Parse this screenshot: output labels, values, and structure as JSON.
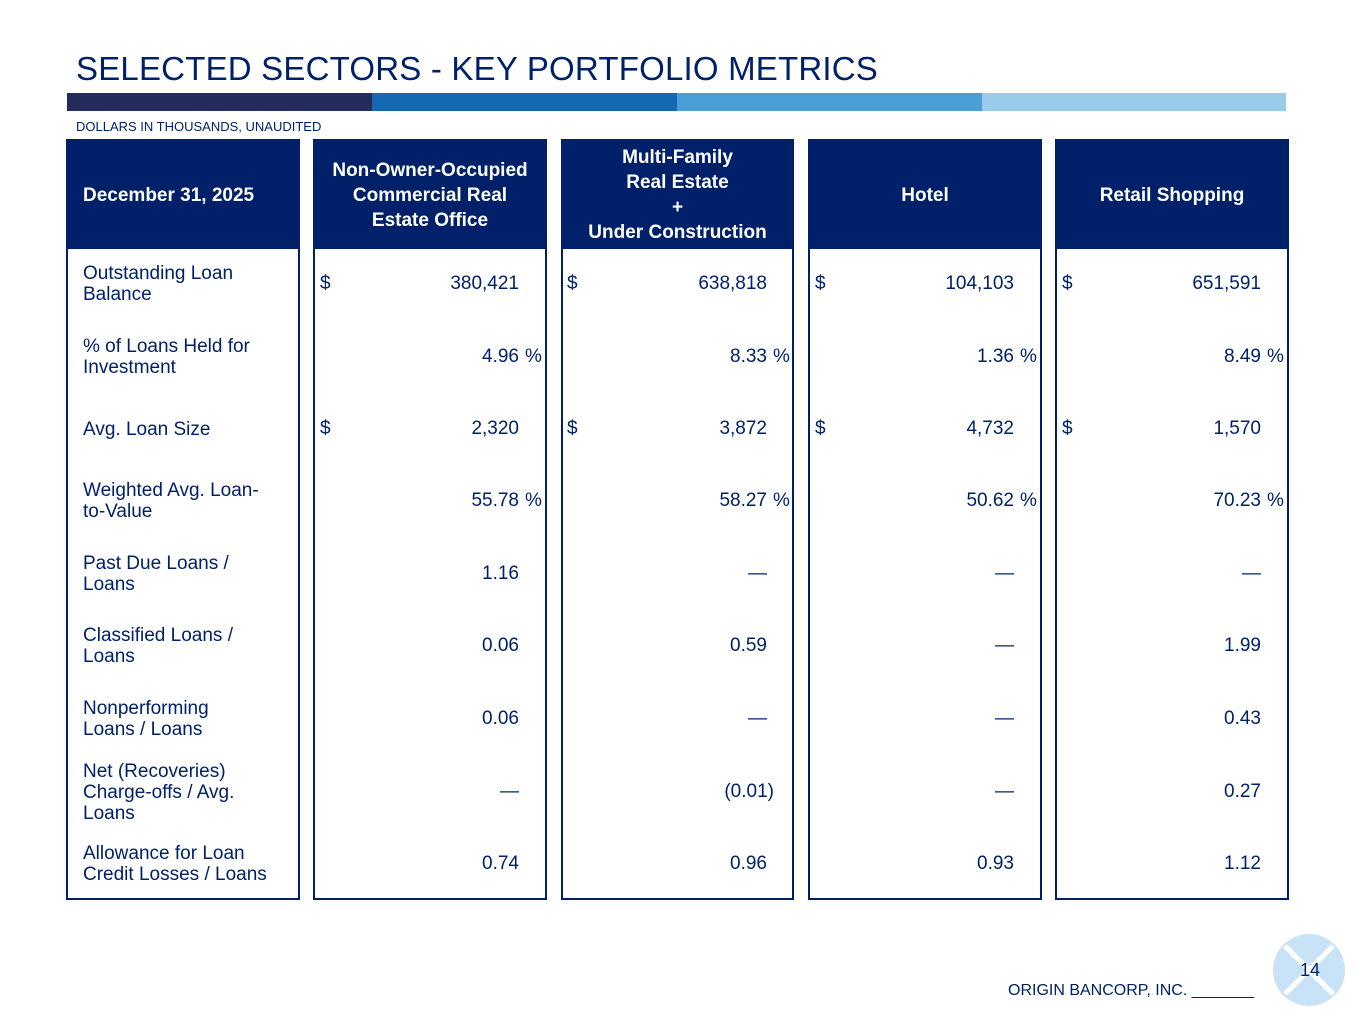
{
  "title": "SELECTED SECTORS - KEY PORTFOLIO METRICS",
  "subtitle": "DOLLARS IN THOUSANDS, UNAUDITED",
  "colors": {
    "navy": "#002169",
    "stripe": [
      "#242c5e",
      "#1569b4",
      "#4a9fd8",
      "#9bcbea"
    ]
  },
  "table": {
    "label_header": "December 31, 2025",
    "columns": [
      {
        "header_lines": [
          "Non-Owner-Occupied",
          "Commercial Real",
          "Estate Office"
        ]
      },
      {
        "header_lines": [
          "Multi-Family",
          "Real Estate",
          "+",
          "Under Construction"
        ]
      },
      {
        "header_lines": [
          "Hotel"
        ]
      },
      {
        "header_lines": [
          "Retail Shopping"
        ]
      }
    ],
    "rows": [
      {
        "label_lines": [
          "Outstanding Loan",
          "Balance"
        ],
        "dollar": "$",
        "pct": "",
        "values": [
          "380,421",
          "638,818",
          "104,103",
          "651,591"
        ]
      },
      {
        "label_lines": [
          "% of Loans Held for",
          "Investment"
        ],
        "dollar": "",
        "pct": "%",
        "values": [
          "4.96",
          "8.33",
          "1.36",
          "8.49"
        ]
      },
      {
        "label_lines": [
          "Avg. Loan Size"
        ],
        "dollar": "$",
        "pct": "",
        "values": [
          "2,320",
          "3,872",
          "4,732",
          "1,570"
        ]
      },
      {
        "label_lines": [
          "Weighted Avg. Loan-",
          "to-Value"
        ],
        "dollar": "",
        "pct": "%",
        "values": [
          "55.78",
          "58.27",
          "50.62",
          "70.23"
        ]
      },
      {
        "label_lines": [
          "Past Due Loans /",
          "Loans"
        ],
        "dollar": "",
        "pct": "",
        "values": [
          "1.16",
          "—",
          "—",
          "—"
        ]
      },
      {
        "label_lines": [
          "Classified Loans /",
          "Loans"
        ],
        "dollar": "",
        "pct": "",
        "values": [
          "0.06",
          "0.59",
          "—",
          "1.99"
        ]
      },
      {
        "label_lines": [
          "Nonperforming",
          "Loans / Loans"
        ],
        "dollar": "",
        "pct": "",
        "values": [
          "0.06",
          "—",
          "—",
          "0.43"
        ]
      },
      {
        "label_lines": [
          "Net (Recoveries)",
          "Charge-offs / Avg.",
          "Loans"
        ],
        "dollar": "",
        "pct": "",
        "values": [
          "—",
          "(0.01)",
          "—",
          "0.27"
        ]
      },
      {
        "label_lines": [
          "Allowance for Loan",
          "Credit Losses / Loans"
        ],
        "dollar": "",
        "pct": "",
        "values": [
          "0.74",
          "0.96",
          "0.93",
          "1.12"
        ]
      }
    ]
  },
  "footer": {
    "company": "ORIGIN BANCORP, INC. _______",
    "page_number": "14",
    "logo_icon": "origin-logo-icon"
  }
}
